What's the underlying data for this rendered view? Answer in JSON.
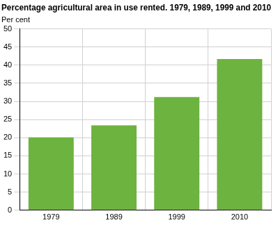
{
  "chart_data": {
    "type": "bar",
    "title": "Percentage agricultural area in use rented. 1979, 1989, 1999 and 2010",
    "y_label": "Per cent",
    "categories": [
      "1979",
      "1989",
      "1999",
      "2010"
    ],
    "values": [
      20.1,
      23.4,
      31.2,
      41.7
    ],
    "color": "#6db33f",
    "ylim": [
      0,
      50
    ],
    "yticks": [
      0,
      5,
      10,
      15,
      20,
      25,
      30,
      35,
      40,
      45,
      50
    ],
    "grid": true
  }
}
